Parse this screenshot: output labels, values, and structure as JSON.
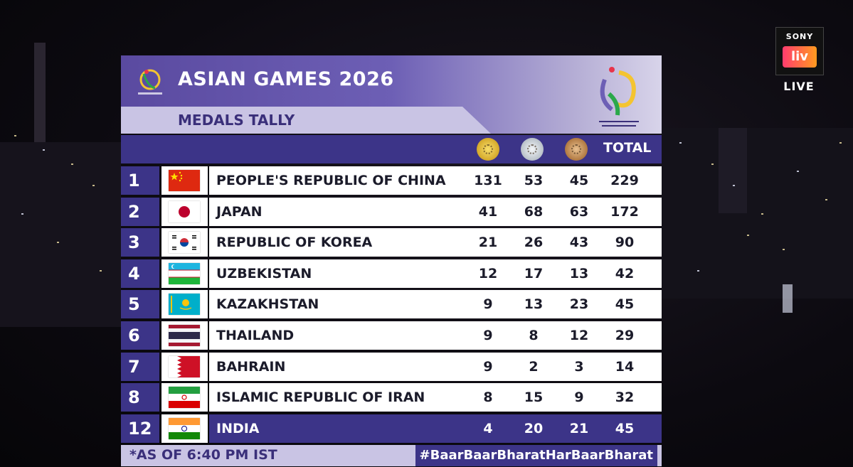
{
  "brand": {
    "top": "SONY",
    "mid": "liv",
    "live": "LIVE"
  },
  "header": {
    "title": "ASIAN GAMES 2026",
    "subtitle": "MEDALS TALLY"
  },
  "columns": {
    "total": "TOTAL"
  },
  "rows": [
    {
      "rank": "1",
      "country": "PEOPLE'S REPUBLIC OF CHINA",
      "flag": "china-flag-icon",
      "gold": "131",
      "silver": "53",
      "bronze": "45",
      "total": "229"
    },
    {
      "rank": "2",
      "country": "JAPAN",
      "flag": "japan-flag-icon",
      "gold": "41",
      "silver": "68",
      "bronze": "63",
      "total": "172"
    },
    {
      "rank": "3",
      "country": "REPUBLIC OF KOREA",
      "flag": "korea-flag-icon",
      "gold": "21",
      "silver": "26",
      "bronze": "43",
      "total": "90"
    },
    {
      "rank": "4",
      "country": "UZBEKISTAN",
      "flag": "uzbekistan-flag-icon",
      "gold": "12",
      "silver": "17",
      "bronze": "13",
      "total": "42"
    },
    {
      "rank": "5",
      "country": "KAZAKHSTAN",
      "flag": "kazakhstan-flag-icon",
      "gold": "9",
      "silver": "13",
      "bronze": "23",
      "total": "45"
    },
    {
      "rank": "6",
      "country": "THAILAND",
      "flag": "thailand-flag-icon",
      "gold": "9",
      "silver": "8",
      "bronze": "12",
      "total": "29"
    },
    {
      "rank": "7",
      "country": "BAHRAIN",
      "flag": "bahrain-flag-icon",
      "gold": "9",
      "silver": "2",
      "bronze": "3",
      "total": "14"
    },
    {
      "rank": "8",
      "country": "ISLAMIC REPUBLIC OF IRAN",
      "flag": "iran-flag-icon",
      "gold": "8",
      "silver": "15",
      "bronze": "9",
      "total": "32"
    },
    {
      "rank": "12",
      "country": "INDIA",
      "flag": "india-flag-icon",
      "gold": "4",
      "silver": "20",
      "bronze": "21",
      "total": "45"
    }
  ],
  "footer": {
    "as_of": "*AS OF 6:40 PM IST",
    "hashtag": "#BaarBaarBharatHarBaarBharat"
  },
  "colors": {
    "panel": "#3c3488",
    "header": "#5a4aa0",
    "light": "#c9c4e4"
  }
}
